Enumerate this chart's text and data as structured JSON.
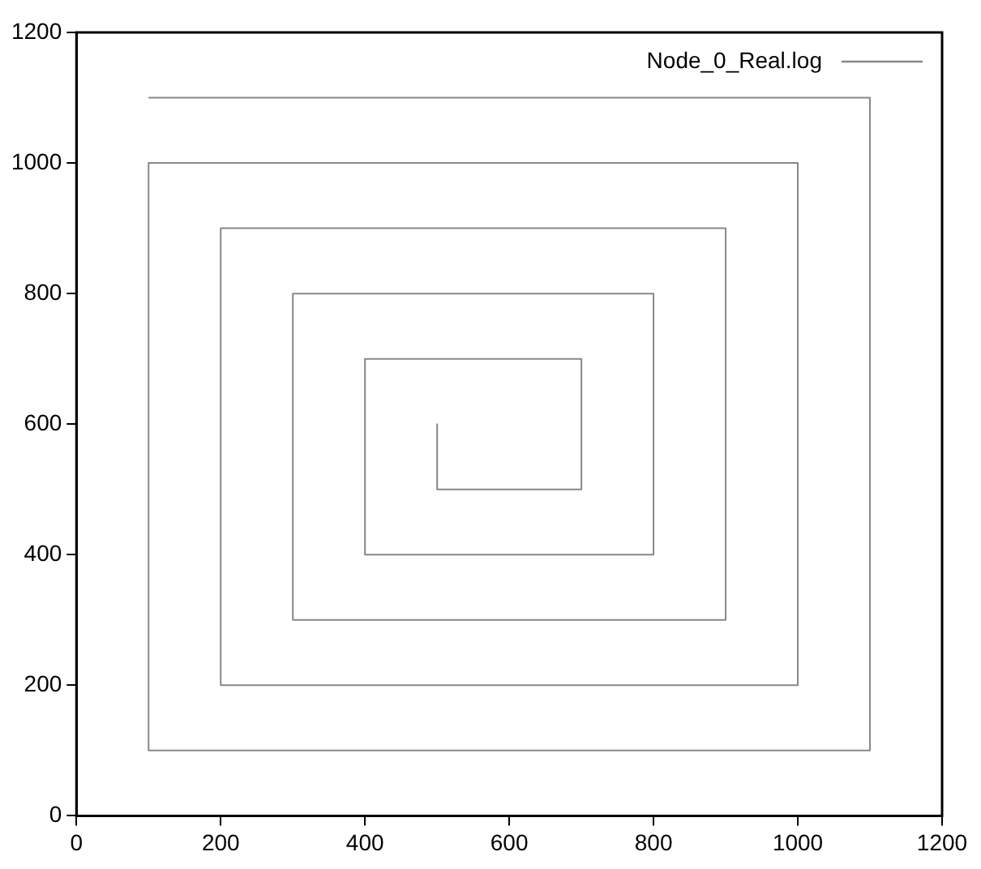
{
  "chart_data": {
    "type": "line",
    "xlim": [
      0,
      1200
    ],
    "ylim": [
      0,
      1200
    ],
    "xticks": [
      0,
      200,
      400,
      600,
      800,
      1000,
      1200
    ],
    "yticks": [
      0,
      200,
      400,
      600,
      800,
      1000,
      1200
    ],
    "legend": "top right",
    "marker": "none",
    "line_style": "solid",
    "series": [
      {
        "name": "Node_0_Real.log",
        "color": "#888888",
        "x": [
          500,
          500,
          700,
          700,
          400,
          400,
          800,
          800,
          300,
          300,
          900,
          900,
          200,
          200,
          1000,
          1000,
          100,
          100,
          1100,
          1100,
          100
        ],
        "values": [
          600,
          500,
          500,
          700,
          700,
          400,
          400,
          800,
          800,
          300,
          300,
          900,
          900,
          200,
          200,
          1000,
          1000,
          100,
          100,
          1100,
          1100
        ]
      }
    ]
  }
}
